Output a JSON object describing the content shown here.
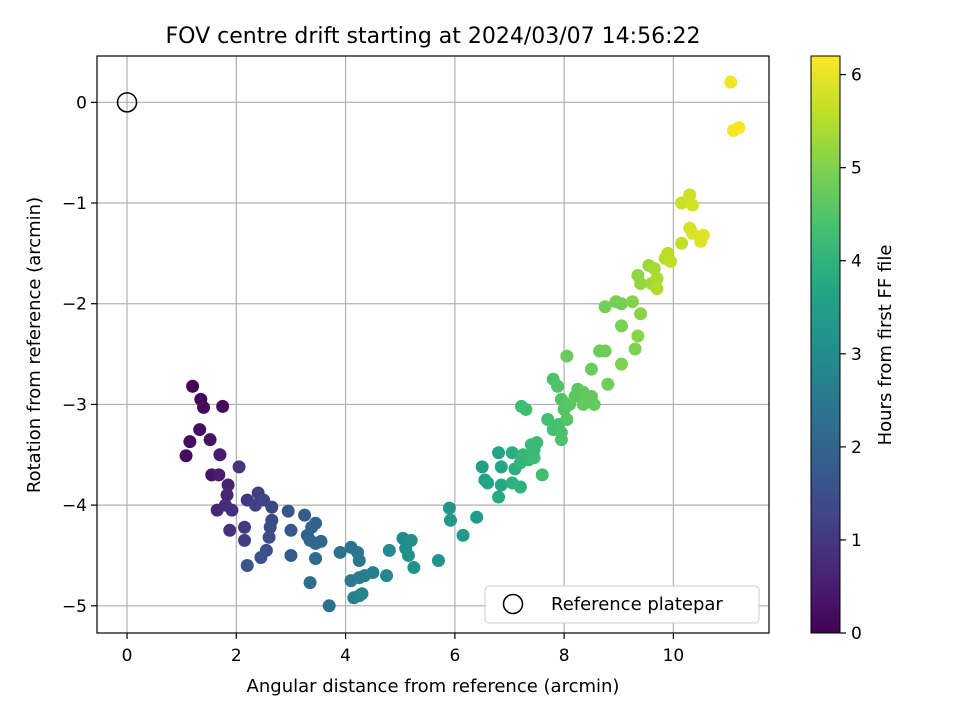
{
  "chart_data": {
    "type": "scatter",
    "title": "FOV centre drift starting at 2024/03/07 14:56:22",
    "xlabel": "Angular distance from reference (arcmin)",
    "ylabel": "Rotation from reference (arcmin)",
    "xlim": [
      -0.55,
      11.75
    ],
    "ylim": [
      -5.27,
      0.46
    ],
    "xticks": [
      0,
      2,
      4,
      6,
      8,
      10
    ],
    "yticks": [
      0,
      -1,
      -2,
      -3,
      -4,
      -5
    ],
    "grid": true,
    "colormap": "viridis",
    "colorbar": {
      "label": "Hours from first FF file",
      "range": [
        0,
        6.2
      ],
      "ticks": [
        0,
        1,
        2,
        3,
        4,
        5,
        6
      ]
    },
    "reference": {
      "x": 0,
      "y": 0,
      "label": "Reference platepar"
    },
    "legend_placement": "lower-right",
    "points": [
      [
        1.2,
        -2.82,
        0.05
      ],
      [
        1.35,
        -2.95,
        0.1
      ],
      [
        1.4,
        -3.03,
        0.12
      ],
      [
        1.75,
        -3.02,
        0.15
      ],
      [
        1.15,
        -3.37,
        0.18
      ],
      [
        1.08,
        -3.51,
        0.22
      ],
      [
        1.33,
        -3.25,
        0.25
      ],
      [
        1.52,
        -3.35,
        0.3
      ],
      [
        1.55,
        -3.7,
        0.35
      ],
      [
        1.7,
        -3.5,
        0.45
      ],
      [
        1.68,
        -3.7,
        0.5
      ],
      [
        1.85,
        -3.8,
        0.6
      ],
      [
        1.83,
        -3.9,
        0.65
      ],
      [
        1.65,
        -4.05,
        0.7
      ],
      [
        1.8,
        -4.0,
        0.8
      ],
      [
        1.92,
        -4.05,
        0.85
      ],
      [
        1.88,
        -4.25,
        0.9
      ],
      [
        2.05,
        -3.62,
        0.95
      ],
      [
        2.2,
        -3.95,
        1.0
      ],
      [
        2.15,
        -4.22,
        1.05
      ],
      [
        2.15,
        -4.35,
        1.1
      ],
      [
        2.4,
        -3.88,
        1.15
      ],
      [
        2.35,
        -4.0,
        1.2
      ],
      [
        2.5,
        -3.95,
        1.25
      ],
      [
        2.65,
        -4.02,
        1.3
      ],
      [
        2.65,
        -4.15,
        1.35
      ],
      [
        2.62,
        -4.22,
        1.4
      ],
      [
        2.6,
        -4.32,
        1.45
      ],
      [
        2.55,
        -4.45,
        1.5
      ],
      [
        2.45,
        -4.52,
        1.55
      ],
      [
        2.2,
        -4.6,
        1.6
      ],
      [
        2.95,
        -4.06,
        1.65
      ],
      [
        3.0,
        -4.25,
        1.7
      ],
      [
        3.0,
        -4.5,
        1.75
      ],
      [
        3.25,
        -4.1,
        1.8
      ],
      [
        3.3,
        -4.3,
        1.85
      ],
      [
        3.38,
        -4.22,
        1.9
      ],
      [
        3.45,
        -4.18,
        1.95
      ],
      [
        3.35,
        -4.35,
        2.0
      ],
      [
        3.45,
        -4.38,
        2.05
      ],
      [
        3.55,
        -4.36,
        2.1
      ],
      [
        3.45,
        -4.53,
        2.15
      ],
      [
        3.35,
        -4.77,
        2.2
      ],
      [
        3.7,
        -5.0,
        2.25
      ],
      [
        3.9,
        -4.47,
        2.3
      ],
      [
        4.1,
        -4.42,
        2.35
      ],
      [
        4.22,
        -4.47,
        2.4
      ],
      [
        4.25,
        -4.55,
        2.45
      ],
      [
        4.1,
        -4.75,
        2.5
      ],
      [
        4.25,
        -4.72,
        2.55
      ],
      [
        4.35,
        -4.7,
        2.6
      ],
      [
        4.5,
        -4.67,
        2.65
      ],
      [
        4.15,
        -4.92,
        2.7
      ],
      [
        4.25,
        -4.9,
        2.75
      ],
      [
        4.3,
        -4.88,
        2.8
      ],
      [
        4.75,
        -4.7,
        2.85
      ],
      [
        4.8,
        -4.45,
        2.9
      ],
      [
        5.05,
        -4.33,
        2.95
      ],
      [
        5.1,
        -4.43,
        3.0
      ],
      [
        5.2,
        -4.35,
        3.05
      ],
      [
        5.15,
        -4.5,
        3.1
      ],
      [
        5.25,
        -4.62,
        3.15
      ],
      [
        5.7,
        -4.55,
        3.2
      ],
      [
        5.9,
        -4.03,
        3.25
      ],
      [
        5.92,
        -4.15,
        3.3
      ],
      [
        6.15,
        -4.3,
        3.35
      ],
      [
        6.4,
        -4.12,
        3.4
      ],
      [
        6.5,
        -3.62,
        3.5
      ],
      [
        6.55,
        -3.75,
        3.55
      ],
      [
        6.6,
        -3.78,
        3.6
      ],
      [
        6.8,
        -3.48,
        3.65
      ],
      [
        6.85,
        -3.62,
        3.7
      ],
      [
        6.85,
        -3.8,
        3.75
      ],
      [
        6.8,
        -3.92,
        3.8
      ],
      [
        7.05,
        -3.48,
        3.85
      ],
      [
        7.1,
        -3.64,
        3.9
      ],
      [
        7.05,
        -3.78,
        3.95
      ],
      [
        7.2,
        -3.82,
        4.0
      ],
      [
        7.2,
        -3.58,
        4.05
      ],
      [
        7.25,
        -3.5,
        4.1
      ],
      [
        7.35,
        -3.55,
        4.12
      ],
      [
        7.4,
        -3.4,
        4.15
      ],
      [
        7.45,
        -3.45,
        4.18
      ],
      [
        7.5,
        -3.38,
        4.2
      ],
      [
        7.45,
        -3.53,
        4.22
      ],
      [
        7.22,
        -3.02,
        4.25
      ],
      [
        7.3,
        -3.05,
        4.28
      ],
      [
        7.6,
        -3.7,
        4.3
      ],
      [
        7.7,
        -3.15,
        4.32
      ],
      [
        7.8,
        -3.25,
        4.35
      ],
      [
        7.9,
        -3.2,
        4.38
      ],
      [
        7.95,
        -3.28,
        4.4
      ],
      [
        7.95,
        -3.35,
        4.42
      ],
      [
        7.8,
        -2.75,
        4.45
      ],
      [
        7.88,
        -2.82,
        4.48
      ],
      [
        7.95,
        -2.95,
        4.5
      ],
      [
        8.0,
        -3.05,
        4.52
      ],
      [
        8.05,
        -3.15,
        4.55
      ],
      [
        8.1,
        -3.0,
        4.58
      ],
      [
        8.2,
        -2.92,
        4.6
      ],
      [
        8.25,
        -2.85,
        4.62
      ],
      [
        8.35,
        -2.88,
        4.65
      ],
      [
        8.35,
        -3.0,
        4.68
      ],
      [
        8.5,
        -2.92,
        4.7
      ],
      [
        8.55,
        -3.0,
        4.72
      ],
      [
        8.05,
        -2.52,
        4.75
      ],
      [
        8.5,
        -2.65,
        4.78
      ],
      [
        8.65,
        -2.47,
        4.8
      ],
      [
        8.75,
        -2.47,
        4.82
      ],
      [
        8.8,
        -2.8,
        4.85
      ],
      [
        8.75,
        -2.03,
        4.88
      ],
      [
        8.95,
        -1.98,
        4.9
      ],
      [
        9.05,
        -2.0,
        4.92
      ],
      [
        9.05,
        -2.22,
        4.95
      ],
      [
        9.05,
        -2.6,
        4.98
      ],
      [
        9.3,
        -2.45,
        5.0
      ],
      [
        9.25,
        -1.98,
        5.05
      ],
      [
        9.35,
        -2.32,
        5.08
      ],
      [
        9.4,
        -2.1,
        5.1
      ],
      [
        9.35,
        -1.72,
        5.15
      ],
      [
        9.4,
        -1.8,
        5.2
      ],
      [
        9.55,
        -1.62,
        5.25
      ],
      [
        9.6,
        -1.8,
        5.3
      ],
      [
        9.65,
        -1.65,
        5.35
      ],
      [
        9.7,
        -1.75,
        5.4
      ],
      [
        9.7,
        -1.85,
        5.45
      ],
      [
        9.85,
        -1.55,
        5.5
      ],
      [
        9.9,
        -1.5,
        5.55
      ],
      [
        9.95,
        -1.58,
        5.6
      ],
      [
        10.15,
        -1.4,
        5.65
      ],
      [
        10.15,
        -1.0,
        5.7
      ],
      [
        10.3,
        -0.92,
        5.75
      ],
      [
        10.35,
        -1.02,
        5.8
      ],
      [
        10.3,
        -1.25,
        5.82
      ],
      [
        10.35,
        -1.3,
        5.85
      ],
      [
        10.5,
        -1.38,
        5.88
      ],
      [
        10.55,
        -1.32,
        5.9
      ],
      [
        11.05,
        0.2,
        6.05
      ],
      [
        11.1,
        -0.28,
        6.1
      ],
      [
        11.2,
        -0.25,
        6.15
      ]
    ]
  }
}
